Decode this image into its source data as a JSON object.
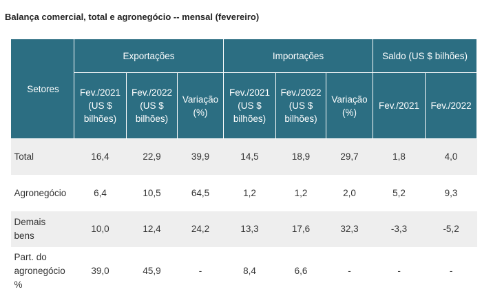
{
  "title": "Balança comercial, total e agronegócio -- mensal (fevereiro)",
  "table": {
    "setores_header": "Setores",
    "groups": {
      "exportacoes": "Exportações",
      "importacoes": "Importações",
      "saldo": "Saldo (US $  bilhões)"
    },
    "subheaders": {
      "fev2021_line1": "Fev./2021",
      "fev2022_line1": "Fev./2022",
      "usd_line2": "(US $",
      "usd_line3": "bilhões)",
      "variacao_line1": "Variação",
      "variacao_line2": "(%)",
      "saldo_fev2021": "Fev./2021",
      "saldo_fev2022": "Fev./2022"
    },
    "rows": [
      {
        "label_lines": [
          "Total"
        ],
        "values": [
          "16,4",
          "22,9",
          "39,9",
          "14,5",
          "18,9",
          "29,7",
          "1,8",
          "4,0"
        ]
      },
      {
        "label_lines": [
          "Agronegócio"
        ],
        "values": [
          "6,4",
          "10,5",
          "64,5",
          "1,2",
          "1,2",
          "2,0",
          "5,2",
          "9,3"
        ]
      },
      {
        "label_lines": [
          "Demais",
          "bens"
        ],
        "values": [
          "10,0",
          "12,4",
          "24,2",
          "13,3",
          "17,6",
          "32,3",
          "-3,3",
          "-5,2"
        ]
      },
      {
        "label_lines": [
          "Part. do",
          "agronegócio",
          "%"
        ],
        "values": [
          "39,0",
          "45,9",
          "-",
          "8,4",
          "6,6",
          "-",
          "-",
          "-"
        ]
      }
    ]
  }
}
